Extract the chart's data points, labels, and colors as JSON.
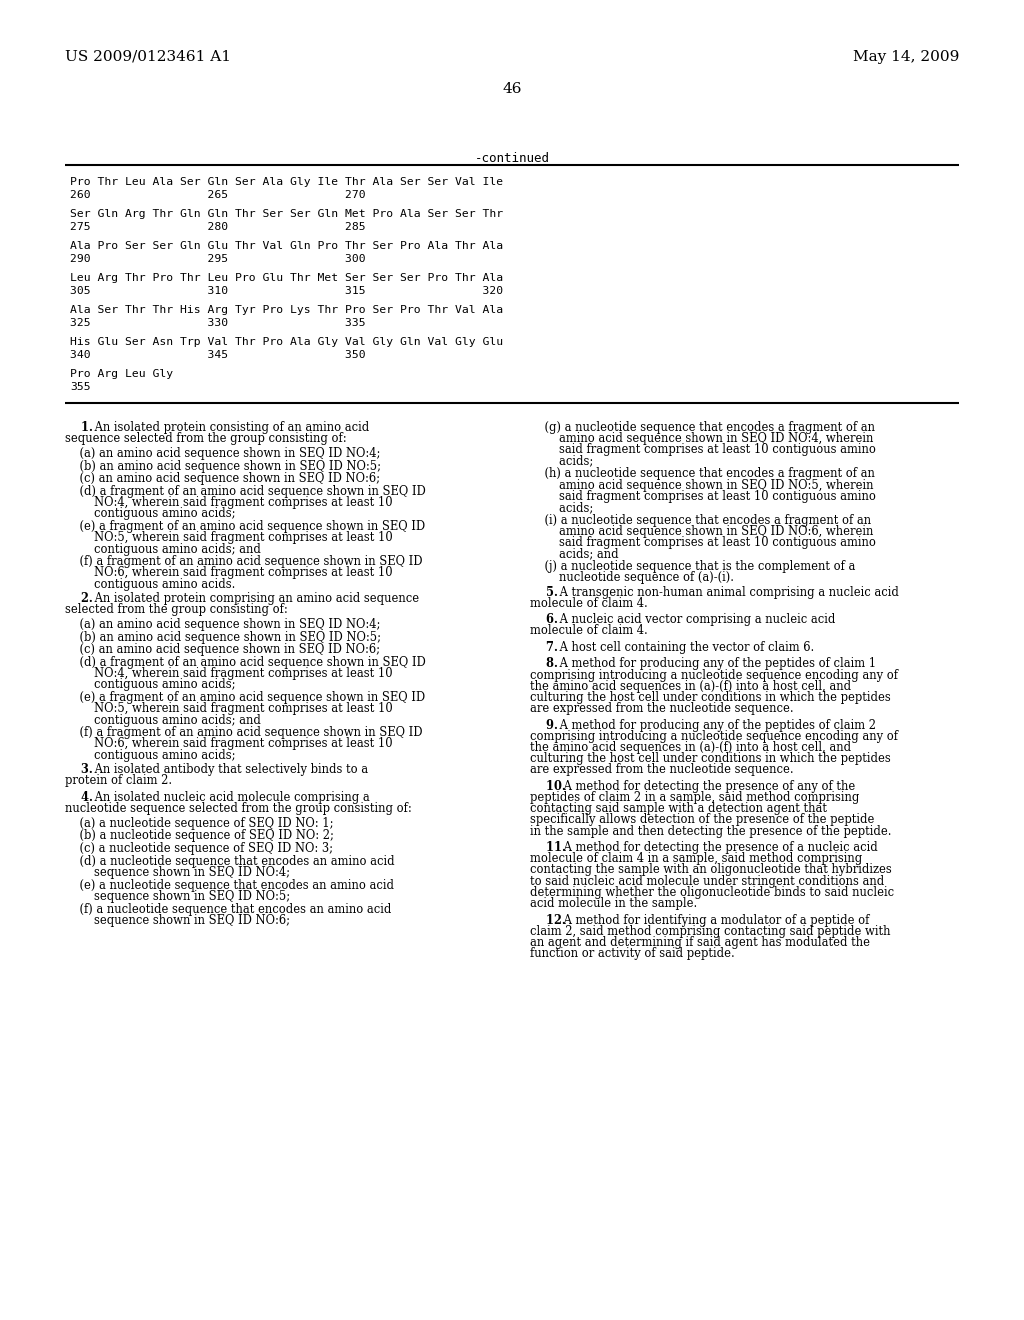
{
  "header_left": "US 2009/0123461 A1",
  "header_right": "May 14, 2009",
  "page_number": "46",
  "continued_label": "-continued",
  "seq_data": [
    [
      "Pro Thr Leu Ala Ser Gln Ser Ala Gly Ile Thr Ala Ser Ser Val Ile",
      "260                 265                 270"
    ],
    [
      "Ser Gln Arg Thr Gln Gln Thr Ser Ser Gln Met Pro Ala Ser Ser Thr",
      "275                 280                 285"
    ],
    [
      "Ala Pro Ser Ser Gln Glu Thr Val Gln Pro Thr Ser Pro Ala Thr Ala",
      "290                 295                 300"
    ],
    [
      "Leu Arg Thr Pro Thr Leu Pro Glu Thr Met Ser Ser Ser Pro Thr Ala",
      "305                 310                 315                 320"
    ],
    [
      "Ala Ser Thr Thr His Arg Tyr Pro Lys Thr Pro Ser Pro Thr Val Ala",
      "325                 330                 335"
    ],
    [
      "His Glu Ser Asn Trp Val Thr Pro Ala Gly Val Gly Gln Val Gly Glu",
      "340                 345                 350"
    ],
    [
      "Pro Arg Leu Gly",
      "355"
    ]
  ],
  "left_claims": [
    {
      "bold_num": true,
      "text": "1.",
      "rest": " An isolated protein consisting of an amino acid sequence selected from the group consisting of:"
    },
    {
      "bold_num": false,
      "text": "(a) an amino acid sequence shown in SEQ ID NO:4;",
      "indent": 1
    },
    {
      "bold_num": false,
      "text": "(b) an amino acid sequence shown in SEQ ID NO:5;",
      "indent": 1
    },
    {
      "bold_num": false,
      "text": "(c) an amino acid sequence shown in SEQ ID NO:6;",
      "indent": 1
    },
    {
      "bold_num": false,
      "text": "(d) a fragment of an amino acid sequence shown in SEQ ID NO:4, wherein said fragment comprises at least 10 contiguous amino acids;",
      "indent": 1
    },
    {
      "bold_num": false,
      "text": "(e) a fragment of an amino acid sequence shown in SEQ ID NO:5, wherein said fragment comprises at least 10 contiguous amino acids; and",
      "indent": 1
    },
    {
      "bold_num": false,
      "text": "(f) a fragment of an amino acid sequence shown in SEQ ID NO:6, wherein said fragment comprises at least 10 contiguous amino acids.",
      "indent": 1
    },
    {
      "bold_num": true,
      "text": "2.",
      "rest": " An isolated protein comprising an amino acid sequence selected from the group consisting of:"
    },
    {
      "bold_num": false,
      "text": "(a) an amino acid sequence shown in SEQ ID NO:4;",
      "indent": 1
    },
    {
      "bold_num": false,
      "text": "(b) an amino acid sequence shown in SEQ ID NO:5;",
      "indent": 1
    },
    {
      "bold_num": false,
      "text": "(c) an amino acid sequence shown in SEQ ID NO:6;",
      "indent": 1
    },
    {
      "bold_num": false,
      "text": "(d) a fragment of an amino acid sequence shown in SEQ ID NO:4, wherein said fragment comprises at least 10 contiguous amino acids;",
      "indent": 1
    },
    {
      "bold_num": false,
      "text": "(e) a fragment of an amino acid sequence shown in SEQ ID NO:5, wherein said fragment comprises at least 10 contiguous amino acids; and",
      "indent": 1
    },
    {
      "bold_num": false,
      "text": "(f) a fragment of an amino acid sequence shown in SEQ ID NO:6, wherein said fragment comprises at least 10 contiguous amino acids;",
      "indent": 1
    },
    {
      "bold_num": true,
      "text": "3.",
      "rest": " An isolated antibody that selectively binds to a protein of claim 2."
    },
    {
      "bold_num": true,
      "text": "4.",
      "rest": " An isolated nucleic acid molecule comprising a nucleotide sequence selected from the group consisting of:"
    },
    {
      "bold_num": false,
      "text": "(a) a nucleotide sequence of SEQ ID NO: 1;",
      "indent": 1
    },
    {
      "bold_num": false,
      "text": "(b) a nucleotide sequence of SEQ ID NO: 2;",
      "indent": 1
    },
    {
      "bold_num": false,
      "text": "(c) a nucleotide sequence of SEQ ID NO: 3;",
      "indent": 1
    },
    {
      "bold_num": false,
      "text": "(d) a nucleotide sequence that encodes an amino acid sequence shown in SEQ ID NO:4;",
      "indent": 1
    },
    {
      "bold_num": false,
      "text": "(e) a nucleotide sequence that encodes an amino acid sequence shown in SEQ ID NO:5;",
      "indent": 1
    },
    {
      "bold_num": false,
      "text": "(f) a nucleotide sequence that encodes an amino acid sequence shown in SEQ ID NO:6;",
      "indent": 1
    }
  ],
  "right_claims": [
    {
      "text": "(g) a nucleotide sequence that encodes a fragment of an amino acid sequence shown in SEQ ID NO:4, wherein said fragment comprises at least 10 contiguous amino acids;",
      "indent": 1
    },
    {
      "text": "(h) a nucleotide sequence that encodes a fragment of an amino acid sequence shown in SEQ ID NO:5, wherein said fragment comprises at least 10 contiguous amino acids;",
      "indent": 1
    },
    {
      "text": "(i) a nucleotide sequence that encodes a fragment of an amino acid sequence shown in SEQ ID NO:6, wherein said fragment comprises at least 10 contiguous amino acids; and",
      "indent": 1
    },
    {
      "text": "(j) a nucleotide sequence that is the complement of a nucleotide sequence of (a)-(i).",
      "indent": 1
    },
    {
      "text": "5. A transgenic non-human animal comprising a nucleic acid molecule of claim 4.",
      "bold_num": true
    },
    {
      "text": "6. A nucleic acid vector comprising a nucleic acid molecule of claim 4.",
      "bold_num": true
    },
    {
      "text": "7. A host cell containing the vector of claim 6.",
      "bold_num": true
    },
    {
      "text": "8. A method for producing any of the peptides of claim 1 comprising introducing a nucleotide sequence encoding any of the amino acid sequences in (a)-(f) into a host cell, and culturing the host cell under conditions in which the peptides are expressed from the nucleotide sequence.",
      "bold_num": true
    },
    {
      "text": "9. A method for producing any of the peptides of claim 2 comprising introducing a nucleotide sequence encoding any of the amino acid sequences in (a)-(f) into a host cell, and culturing the host cell under conditions in which the peptides are expressed from the nucleotide sequence.",
      "bold_num": true
    },
    {
      "text": "10. A method for detecting the presence of any of the peptides of claim 2 in a sample, said method comprising contacting said sample with a detection agent that specifically allows detection of the presence of the peptide in the sample and then detecting the presence of the peptide.",
      "bold_num": true
    },
    {
      "text": "11. A method for detecting the presence of a nucleic acid molecule of claim 4 in a sample, said method comprising contacting the sample with an oligonucleotide that hybridizes to said nucleic acid molecule under stringent conditions and determining whether the oligonucleotide binds to said nucleic acid molecule in the sample.",
      "bold_num": true
    },
    {
      "text": "12. A method for identifying a modulator of a peptide of claim 2, said method comprising contacting said peptide with an agent and determining if said agent has modulated the function or activity of said peptide.",
      "bold_num": true
    }
  ],
  "bg_color": "#ffffff",
  "text_color": "#000000"
}
